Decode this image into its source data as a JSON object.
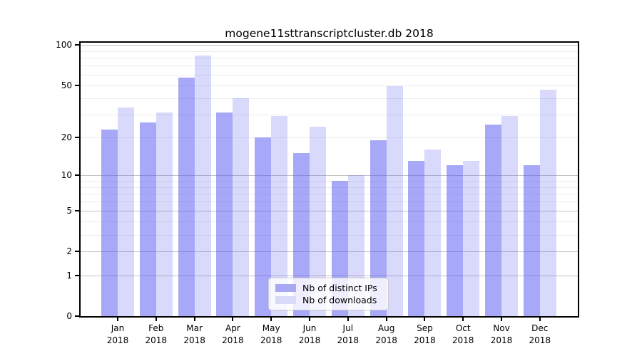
{
  "chart_data": {
    "type": "bar",
    "title": "mogene11sttranscriptcluster.db 2018",
    "months": [
      "Jan",
      "Feb",
      "Mar",
      "Apr",
      "May",
      "Jun",
      "Jul",
      "Aug",
      "Sep",
      "Oct",
      "Nov",
      "Dec"
    ],
    "year": "2018",
    "series": [
      {
        "name": "Nb of distinct IPs",
        "color": "#a8a8f4",
        "rgba": "rgba(82,82,241,0.50)",
        "values": [
          23,
          26,
          57,
          31,
          20,
          15,
          9,
          19,
          13,
          12,
          25,
          12
        ]
      },
      {
        "name": "Nb of downloads",
        "color": "#d9d9f8",
        "rgba": "rgba(82,82,241,0.22)",
        "values": [
          34,
          31,
          83,
          40,
          29,
          24,
          10,
          49,
          16,
          13,
          29,
          46
        ]
      }
    ],
    "xlabel": "",
    "ylabel": "",
    "yscale": "log1p",
    "ymax": 104,
    "yticks": [
      0,
      1,
      2,
      5,
      10,
      20,
      50,
      100
    ],
    "minor_gridlines": [
      2,
      3,
      4,
      6,
      7,
      8,
      9,
      20,
      30,
      40,
      50,
      60,
      70,
      80,
      90
    ],
    "major_gridlines": [
      1,
      2,
      5,
      10,
      100
    ],
    "grid": "on",
    "legend_position": "inside lower center-right"
  }
}
